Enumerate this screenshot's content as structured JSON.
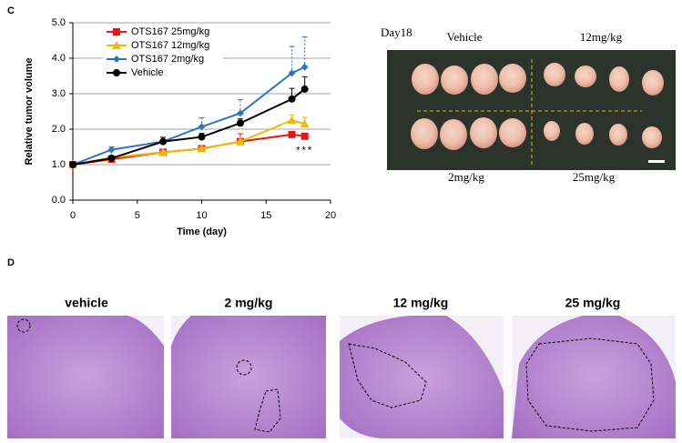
{
  "panel_c_label": "C",
  "chart_data": {
    "type": "line",
    "x_label": "Time (day)",
    "y_label": "Relative tumor volume",
    "x": [
      0,
      3,
      7,
      10,
      13,
      17,
      18
    ],
    "series": [
      {
        "name": "OTS167 25mg/kg",
        "color": "#e8141b",
        "marker": "square",
        "values": [
          1.0,
          1.15,
          1.35,
          1.45,
          1.65,
          1.85,
          1.8
        ],
        "errors": [
          0,
          0.03,
          0.05,
          0.05,
          0.22,
          0.05,
          0.05
        ]
      },
      {
        "name": "OTS167 12mg/kg",
        "color": "#f5b800",
        "marker": "triangle",
        "values": [
          1.0,
          1.2,
          1.35,
          1.45,
          1.65,
          2.25,
          2.15
        ],
        "errors": [
          0,
          0.05,
          0.05,
          0.05,
          0.05,
          0.15,
          0.18
        ]
      },
      {
        "name": "OTS167 2mg/kg",
        "color": "#2e75c0",
        "marker": "diamond",
        "values": [
          1.0,
          1.42,
          1.65,
          2.07,
          2.45,
          3.58,
          3.75
        ],
        "errors": [
          0,
          0.08,
          0.05,
          0.25,
          0.38,
          0.75,
          0.85
        ]
      },
      {
        "name": "Vehicle",
        "color": "#000000",
        "marker": "circle",
        "values": [
          1.0,
          1.18,
          1.65,
          1.78,
          2.17,
          2.85,
          3.13
        ],
        "errors": [
          0,
          0.05,
          0.12,
          0.1,
          0.12,
          0.3,
          0.35
        ]
      }
    ],
    "annotation": "***",
    "xlim": [
      0,
      20
    ],
    "xticks": [
      0,
      5,
      10,
      15,
      20
    ],
    "ylim": [
      0,
      5
    ],
    "yticks": [
      {
        "value": 0,
        "label": "0.0"
      },
      {
        "value": 1,
        "label": "1.0"
      },
      {
        "value": 2,
        "label": "2.0"
      },
      {
        "value": 3,
        "label": "3.0"
      },
      {
        "value": 4,
        "label": "4.0"
      },
      {
        "value": 5,
        "label": "5.0"
      }
    ],
    "grid": true,
    "legend": "upper left"
  },
  "photo": {
    "title": "Day18",
    "labels": [
      "Vehicle",
      "12mg/kg",
      "2mg/kg",
      "25mg/kg"
    ]
  },
  "panel_d_label": "D",
  "histology": {
    "labels": [
      "vehicle",
      "2 mg/kg",
      "12 mg/kg",
      "25 mg/kg"
    ]
  }
}
